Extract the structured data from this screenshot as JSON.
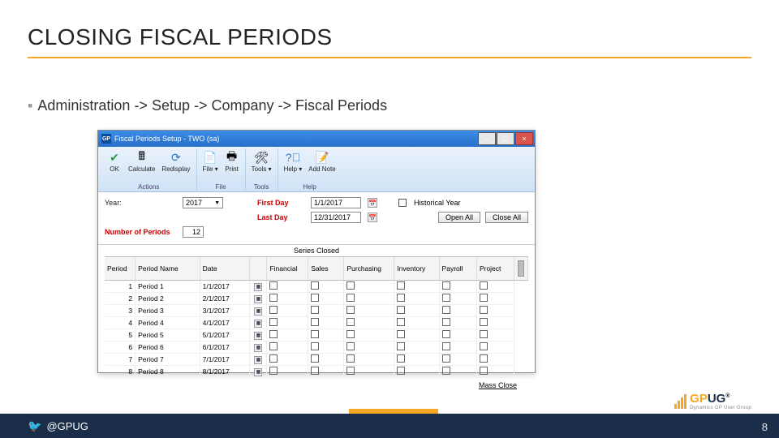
{
  "slide": {
    "title": "CLOSING FISCAL PERIODS",
    "breadcrumb": "Administration -> Setup -> Company -> Fiscal Periods",
    "page_number": "8",
    "handle": "@GPUG",
    "logo_text_1": "GP",
    "logo_text_2": "UG",
    "logo_sub": "Dynamics GP User Group",
    "colors": {
      "accent": "#f5a623",
      "navy": "#1a2e4a",
      "titlebar_top": "#3a8de8",
      "titlebar_bottom": "#2a6fc8"
    }
  },
  "window": {
    "title": "Fiscal Periods Setup  -  TWO (sa)",
    "min": "–",
    "max": "□",
    "close": "×",
    "toolbar": {
      "ok": "OK",
      "calculate": "Calculate",
      "redisplay": "Redisplay",
      "file": "File",
      "print": "Print",
      "tools": "Tools",
      "help": "Help",
      "addnote": "Add Note",
      "group_actions": "Actions",
      "group_file": "File",
      "group_tools": "Tools",
      "group_help": "Help"
    },
    "form": {
      "year_label": "Year:",
      "year_value": "2017",
      "first_day_label": "First Day",
      "first_day_value": "1/1/2017",
      "last_day_label": "Last Day",
      "last_day_value": "12/31/2017",
      "historical_label": "Historical Year",
      "num_periods_label": "Number of Periods",
      "num_periods_value": "12",
      "open_all": "Open All",
      "close_all": "Close All"
    },
    "grid": {
      "series_header": "Series Closed",
      "columns": [
        "Period",
        "Period Name",
        "Date",
        "",
        "Financial",
        "Sales",
        "Purchasing",
        "Inventory",
        "Payroll",
        "Project",
        ""
      ],
      "rows": [
        [
          "1",
          "Period 1",
          "1/1/2017"
        ],
        [
          "2",
          "Period 2",
          "2/1/2017"
        ],
        [
          "3",
          "Period 3",
          "3/1/2017"
        ],
        [
          "4",
          "Period 4",
          "4/1/2017"
        ],
        [
          "5",
          "Period 5",
          "5/1/2017"
        ],
        [
          "6",
          "Period 6",
          "6/1/2017"
        ],
        [
          "7",
          "Period 7",
          "7/1/2017"
        ],
        [
          "8",
          "Period 8",
          "8/1/2017"
        ]
      ]
    },
    "mass_close": "Mass Close"
  }
}
